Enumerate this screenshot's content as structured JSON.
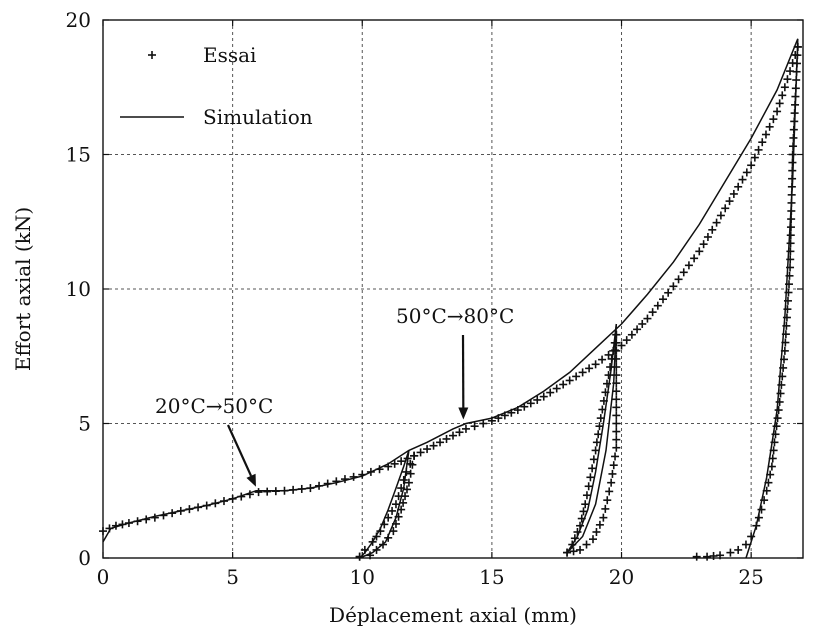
{
  "chart_data": {
    "type": "scatter",
    "title": "",
    "xlabel": "Déplacement axial (mm)",
    "ylabel": "Effort axial (kN)",
    "xlim": [
      0,
      27
    ],
    "ylim": [
      0,
      20
    ],
    "xticks": [
      0,
      5,
      10,
      15,
      20,
      25
    ],
    "yticks": [
      0,
      5,
      10,
      15,
      20
    ],
    "grid": true,
    "legend_position": "top-left",
    "legend": [
      {
        "name": "Essai",
        "marker": "plus"
      },
      {
        "name": "Simulation",
        "style": "solid-line"
      }
    ],
    "annotations": [
      {
        "text": "20°C→50°C",
        "arrow_to": [
          5.9,
          2.5
        ]
      },
      {
        "text": "50°C→80°C",
        "arrow_to": [
          13.9,
          5.0
        ]
      }
    ],
    "series": [
      {
        "name": "Simulation",
        "kind": "line",
        "segments": [
          [
            [
              0,
              0.6
            ],
            [
              0.3,
              1.1
            ],
            [
              1,
              1.3
            ],
            [
              2,
              1.55
            ],
            [
              3,
              1.75
            ],
            [
              4,
              1.95
            ],
            [
              5,
              2.2
            ],
            [
              5.9,
              2.5
            ],
            [
              6.3,
              2.5
            ],
            [
              7,
              2.5
            ],
            [
              8,
              2.6
            ],
            [
              9,
              2.8
            ],
            [
              10,
              3.05
            ],
            [
              11,
              3.5
            ],
            [
              11.8,
              4.0
            ],
            [
              12.5,
              4.3
            ],
            [
              13.5,
              4.8
            ],
            [
              14,
              5.0
            ],
            [
              15,
              5.2
            ],
            [
              16,
              5.6
            ],
            [
              17,
              6.2
            ],
            [
              18,
              6.9
            ],
            [
              19,
              7.8
            ],
            [
              20,
              8.7
            ],
            [
              21,
              9.8
            ],
            [
              22,
              11.0
            ],
            [
              23,
              12.4
            ],
            [
              24,
              14.0
            ],
            [
              25,
              15.6
            ],
            [
              26,
              17.4
            ],
            [
              26.8,
              19.3
            ]
          ],
          [
            [
              11.8,
              4.0
            ],
            [
              11.6,
              3.4
            ],
            [
              11.3,
              2.6
            ],
            [
              11.0,
              1.8
            ],
            [
              10.7,
              1.1
            ],
            [
              10.4,
              0.6
            ],
            [
              10.1,
              0.2
            ],
            [
              9.9,
              0.0
            ]
          ],
          [
            [
              9.9,
              0.0
            ],
            [
              10.4,
              0.2
            ],
            [
              10.9,
              0.6
            ],
            [
              11.3,
              1.5
            ],
            [
              11.6,
              2.6
            ],
            [
              11.8,
              4.0
            ]
          ],
          [
            [
              19.8,
              8.7
            ],
            [
              19.6,
              7.0
            ],
            [
              19.3,
              5.0
            ],
            [
              19.0,
              3.2
            ],
            [
              18.7,
              1.8
            ],
            [
              18.3,
              0.8
            ],
            [
              17.9,
              0.2
            ]
          ],
          [
            [
              17.9,
              0.2
            ],
            [
              18.5,
              0.8
            ],
            [
              19.0,
              2.0
            ],
            [
              19.4,
              4.0
            ],
            [
              19.7,
              6.5
            ],
            [
              19.8,
              8.7
            ]
          ],
          [
            [
              26.8,
              19.3
            ],
            [
              26.6,
              14.0
            ],
            [
              26.3,
              9.0
            ],
            [
              26.0,
              5.5
            ],
            [
              25.6,
              3.0
            ],
            [
              25.2,
              1.2
            ],
            [
              24.8,
              0.0
            ]
          ]
        ]
      },
      {
        "name": "Essai",
        "kind": "markers",
        "segments": [
          [
            [
              0,
              1.0
            ],
            [
              0.5,
              1.2
            ],
            [
              1,
              1.3
            ],
            [
              2,
              1.5
            ],
            [
              3,
              1.75
            ],
            [
              4,
              1.95
            ],
            [
              5,
              2.2
            ],
            [
              6,
              2.45
            ],
            [
              7,
              2.5
            ],
            [
              8,
              2.6
            ],
            [
              9,
              2.85
            ],
            [
              10,
              3.1
            ],
            [
              11,
              3.4
            ],
            [
              12,
              3.8
            ],
            [
              13,
              4.3
            ],
            [
              14,
              4.8
            ],
            [
              15,
              5.1
            ],
            [
              16,
              5.5
            ],
            [
              17,
              6.0
            ],
            [
              18,
              6.6
            ],
            [
              19,
              7.2
            ],
            [
              20,
              7.9
            ],
            [
              21,
              8.9
            ],
            [
              22,
              10.1
            ],
            [
              23,
              11.4
            ],
            [
              24,
              13.0
            ],
            [
              25,
              14.6
            ],
            [
              26,
              16.6
            ],
            [
              26.8,
              19.0
            ]
          ],
          [
            [
              12.0,
              3.8
            ],
            [
              11.7,
              3.2
            ],
            [
              11.5,
              2.6
            ],
            [
              11.3,
              2.0
            ],
            [
              11.0,
              1.5
            ],
            [
              10.7,
              1.0
            ],
            [
              10.4,
              0.6
            ],
            [
              10.1,
              0.3
            ],
            [
              9.9,
              0.05
            ]
          ],
          [
            [
              9.9,
              0.05
            ],
            [
              10.3,
              0.1
            ],
            [
              10.8,
              0.5
            ],
            [
              11.2,
              1.0
            ],
            [
              11.5,
              1.8
            ],
            [
              11.8,
              2.8
            ],
            [
              12.0,
              3.8
            ]
          ],
          [
            [
              19.8,
              8.3
            ],
            [
              19.5,
              6.8
            ],
            [
              19.2,
              5.2
            ],
            [
              19.0,
              4.0
            ],
            [
              18.8,
              3.0
            ],
            [
              18.6,
              2.0
            ],
            [
              18.4,
              1.2
            ],
            [
              18.1,
              0.5
            ],
            [
              17.9,
              0.2
            ]
          ],
          [
            [
              17.9,
              0.2
            ],
            [
              18.4,
              0.3
            ],
            [
              18.9,
              0.7
            ],
            [
              19.3,
              1.5
            ],
            [
              19.6,
              2.8
            ],
            [
              19.8,
              4.1
            ],
            [
              19.8,
              8.3
            ]
          ],
          [
            [
              26.8,
              19.0
            ],
            [
              26.6,
              15.0
            ],
            [
              26.5,
              10.8
            ],
            [
              26.3,
              7.7
            ],
            [
              26.1,
              5.8
            ],
            [
              25.9,
              4.3
            ],
            [
              25.8,
              3.4
            ],
            [
              25.6,
              2.5
            ],
            [
              25.4,
              1.8
            ],
            [
              25.2,
              1.2
            ],
            [
              25.0,
              0.8
            ],
            [
              24.8,
              0.5
            ],
            [
              24.5,
              0.3
            ],
            [
              24.2,
              0.2
            ],
            [
              23.8,
              0.1
            ],
            [
              23.3,
              0.05
            ],
            [
              22.9,
              0.05
            ]
          ]
        ]
      }
    ]
  }
}
